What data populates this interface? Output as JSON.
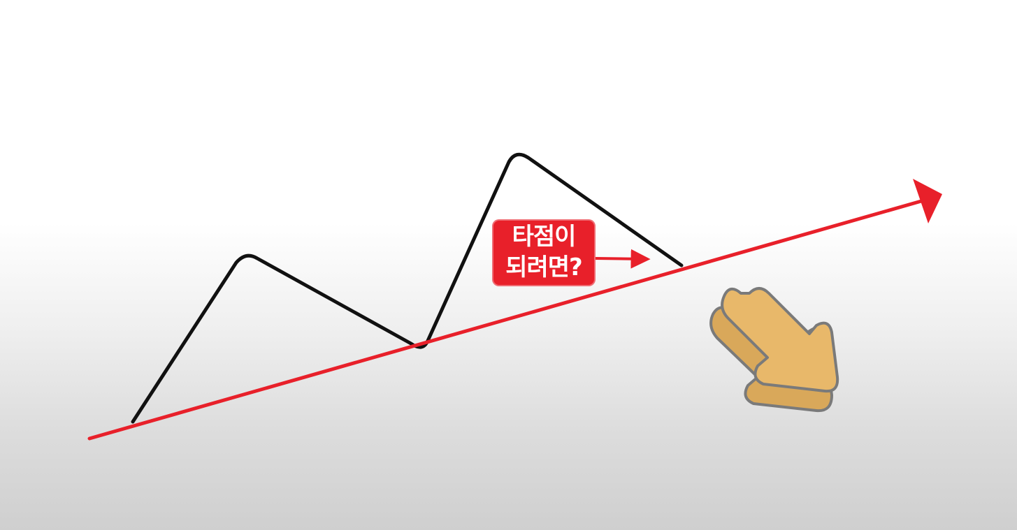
{
  "diagram": {
    "type": "uptrend-support-line",
    "callout": {
      "line1": "타점이",
      "line2": "되려면?"
    },
    "colors": {
      "price_line": "#111111",
      "trend_line": "#e8202a",
      "callout_bg": "#e8202a",
      "callout_text": "#ffffff",
      "hand_fill": "#e8b86a",
      "hand_outline": "#7a7a7a"
    },
    "icons": [
      "pointing-hand-icon",
      "arrowhead-icon"
    ]
  }
}
